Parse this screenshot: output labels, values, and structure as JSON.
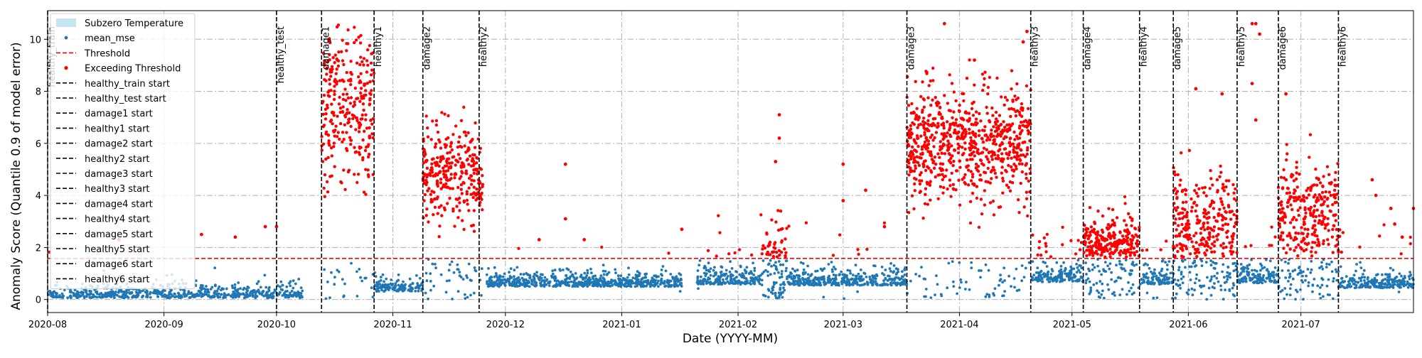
{
  "chart_data": {
    "type": "scatter",
    "title": "",
    "xlabel": "Date (YYYY-MM)",
    "ylabel": "Anomaly Score (Quantile 0.9 of model error)",
    "xlim": [
      "2020-08-01",
      "2021-07-31"
    ],
    "ylim": [
      -0.5,
      11.1
    ],
    "x_ticks": [
      "2020-08",
      "2020-09",
      "2020-10",
      "2020-11",
      "2020-12",
      "2021-01",
      "2021-02",
      "2021-03",
      "2021-04",
      "2021-05",
      "2021-06",
      "2021-07"
    ],
    "y_ticks": [
      0,
      2,
      4,
      6,
      8,
      10
    ],
    "grid": true,
    "legend_position": "top-left",
    "threshold": 1.58,
    "colors": {
      "normal": "#1f77b4",
      "exceed": "#ff0000",
      "threshold": "#ff0000",
      "event_line": "#000000",
      "subzero": "#add8e6",
      "grid": "#b0b0b0"
    },
    "legend": [
      {
        "label": "Subzero Temperature",
        "kind": "patch"
      },
      {
        "label": "mean_mse",
        "kind": "dot_blue"
      },
      {
        "label": "Threshold",
        "kind": "dash_red"
      },
      {
        "label": "Exceeding Threshold",
        "kind": "dot_red"
      },
      {
        "label": "healthy_train start",
        "kind": "dash_black"
      },
      {
        "label": "healthy_test start",
        "kind": "dash_black"
      },
      {
        "label": "damage1 start",
        "kind": "dash_black"
      },
      {
        "label": "healthy1 start",
        "kind": "dash_black"
      },
      {
        "label": "damage2 start",
        "kind": "dash_black"
      },
      {
        "label": "healthy2 start",
        "kind": "dash_black"
      },
      {
        "label": "damage3 start",
        "kind": "dash_black"
      },
      {
        "label": "healthy3 start",
        "kind": "dash_black"
      },
      {
        "label": "damage4 start",
        "kind": "dash_black"
      },
      {
        "label": "healthy4 start",
        "kind": "dash_black"
      },
      {
        "label": "damage5 start",
        "kind": "dash_black"
      },
      {
        "label": "healthy5 start",
        "kind": "dash_black"
      },
      {
        "label": "damage6 start",
        "kind": "dash_black"
      },
      {
        "label": "healthy6 start",
        "kind": "dash_black"
      }
    ],
    "events": [
      {
        "label": "healthy_train",
        "date": "2020-08-01"
      },
      {
        "label": "healthy_test",
        "date": "2020-10-01"
      },
      {
        "label": "damage1",
        "date": "2020-10-13"
      },
      {
        "label": "healthy1",
        "date": "2020-10-27"
      },
      {
        "label": "damage2",
        "date": "2020-11-09"
      },
      {
        "label": "healthy2",
        "date": "2020-11-24"
      },
      {
        "label": "damage3",
        "date": "2021-03-18"
      },
      {
        "label": "healthy3",
        "date": "2021-04-20"
      },
      {
        "label": "damage4",
        "date": "2021-05-04"
      },
      {
        "label": "healthy4",
        "date": "2021-05-19"
      },
      {
        "label": "damage5",
        "date": "2021-05-28"
      },
      {
        "label": "healthy5",
        "date": "2021-06-14"
      },
      {
        "label": "damage6",
        "date": "2021-06-25"
      },
      {
        "label": "healthy6",
        "date": "2021-07-11"
      }
    ],
    "segments": [
      {
        "start": "2020-08-01",
        "end": "2020-10-08",
        "level": 0.15,
        "spread": 0.3,
        "max_normal": 1.3,
        "exceed_rate": 0.004,
        "exceed_level": 2.0,
        "exceed_spread": 0.5,
        "density": 9
      },
      {
        "start": "2020-10-13",
        "end": "2020-10-27",
        "level": 7.6,
        "spread": 1.4,
        "max_normal": 1.55,
        "exceed_rate": 0.9,
        "exceed_level": 7.4,
        "exceed_spread": 1.6,
        "density": 22
      },
      {
        "start": "2020-10-27",
        "end": "2020-11-09",
        "level": 0.4,
        "spread": 0.3,
        "max_normal": 1.2,
        "exceed_rate": 0.01,
        "exceed_level": 2.0,
        "exceed_spread": 0.6,
        "density": 10
      },
      {
        "start": "2020-11-09",
        "end": "2020-11-25",
        "level": 4.7,
        "spread": 0.8,
        "max_normal": 1.55,
        "exceed_rate": 0.85,
        "exceed_level": 4.8,
        "exceed_spread": 0.9,
        "density": 22
      },
      {
        "start": "2020-11-26",
        "end": "2021-01-17",
        "level": 0.6,
        "spread": 0.35,
        "max_normal": 1.4,
        "exceed_rate": 0.006,
        "exceed_level": 1.9,
        "exceed_spread": 0.4,
        "density": 12
      },
      {
        "start": "2021-01-21",
        "end": "2021-02-07",
        "level": 0.7,
        "spread": 0.4,
        "max_normal": 1.55,
        "exceed_rate": 0.05,
        "exceed_level": 2.0,
        "exceed_spread": 0.6,
        "density": 12
      },
      {
        "start": "2021-02-07",
        "end": "2021-02-14",
        "level": 1.8,
        "spread": 0.6,
        "max_normal": 1.55,
        "exceed_rate": 0.45,
        "exceed_level": 2.1,
        "exceed_spread": 0.6,
        "density": 16
      },
      {
        "start": "2021-02-14",
        "end": "2021-03-18",
        "level": 0.65,
        "spread": 0.35,
        "max_normal": 1.45,
        "exceed_rate": 0.012,
        "exceed_level": 2.1,
        "exceed_spread": 0.8,
        "density": 12
      },
      {
        "start": "2021-03-18",
        "end": "2021-04-20",
        "level": 6.0,
        "spread": 0.9,
        "max_normal": 1.55,
        "exceed_rate": 0.92,
        "exceed_level": 6.0,
        "exceed_spread": 1.1,
        "density": 24
      },
      {
        "start": "2021-04-20",
        "end": "2021-05-04",
        "level": 0.8,
        "spread": 0.4,
        "max_normal": 1.55,
        "exceed_rate": 0.08,
        "exceed_level": 2.0,
        "exceed_spread": 0.5,
        "density": 12
      },
      {
        "start": "2021-05-04",
        "end": "2021-05-19",
        "level": 2.2,
        "spread": 0.5,
        "max_normal": 1.55,
        "exceed_rate": 0.7,
        "exceed_level": 2.3,
        "exceed_spread": 0.5,
        "density": 20
      },
      {
        "start": "2021-05-19",
        "end": "2021-05-28",
        "level": 0.7,
        "spread": 0.4,
        "max_normal": 1.5,
        "exceed_rate": 0.06,
        "exceed_level": 2.0,
        "exceed_spread": 0.5,
        "density": 12
      },
      {
        "start": "2021-05-28",
        "end": "2021-06-14",
        "level": 2.8,
        "spread": 0.9,
        "max_normal": 1.55,
        "exceed_rate": 0.75,
        "exceed_level": 2.9,
        "exceed_spread": 1.0,
        "density": 22
      },
      {
        "start": "2021-06-14",
        "end": "2021-06-25",
        "level": 0.75,
        "spread": 0.4,
        "max_normal": 1.55,
        "exceed_rate": 0.06,
        "exceed_level": 2.2,
        "exceed_spread": 0.6,
        "density": 12
      },
      {
        "start": "2021-06-25",
        "end": "2021-07-11",
        "level": 3.2,
        "spread": 1.0,
        "max_normal": 1.55,
        "exceed_rate": 0.8,
        "exceed_level": 3.3,
        "exceed_spread": 1.1,
        "density": 22
      },
      {
        "start": "2021-07-11",
        "end": "2021-07-31",
        "level": 0.55,
        "spread": 0.35,
        "max_normal": 1.5,
        "exceed_rate": 0.04,
        "exceed_level": 2.1,
        "exceed_spread": 0.5,
        "density": 12
      }
    ],
    "outliers": [
      {
        "date": "2021-03-28",
        "y": 10.6
      },
      {
        "date": "2021-04-19",
        "y": 10.3
      },
      {
        "date": "2021-04-18",
        "y": 9.9
      },
      {
        "date": "2021-04-05",
        "y": 9.2
      },
      {
        "date": "2021-06-18",
        "y": 10.6
      },
      {
        "date": "2021-06-19",
        "y": 10.6
      },
      {
        "date": "2021-06-20",
        "y": 10.2
      },
      {
        "date": "2021-06-18",
        "y": 8.3
      },
      {
        "date": "2021-06-19",
        "y": 6.9
      },
      {
        "date": "2021-06-10",
        "y": 7.9
      },
      {
        "date": "2021-06-03",
        "y": 8.1
      },
      {
        "date": "2021-06-27",
        "y": 7.9
      },
      {
        "date": "2021-02-12",
        "y": 7.1
      },
      {
        "date": "2021-02-12",
        "y": 6.2
      },
      {
        "date": "2021-02-11",
        "y": 5.3
      },
      {
        "date": "2020-12-17",
        "y": 5.2
      },
      {
        "date": "2020-12-17",
        "y": 3.1
      },
      {
        "date": "2021-03-01",
        "y": 5.2
      },
      {
        "date": "2021-03-01",
        "y": 3.8
      },
      {
        "date": "2021-03-07",
        "y": 4.2
      },
      {
        "date": "2021-07-20",
        "y": 4.6
      },
      {
        "date": "2021-07-21",
        "y": 4.0
      },
      {
        "date": "2021-07-25",
        "y": 3.5
      },
      {
        "date": "2021-07-31",
        "y": 3.5
      },
      {
        "date": "2021-07-26",
        "y": 2.9
      },
      {
        "date": "2021-07-28",
        "y": 2.4
      },
      {
        "date": "2021-03-12",
        "y": 2.8
      },
      {
        "date": "2020-09-11",
        "y": 2.5
      },
      {
        "date": "2020-09-20",
        "y": 2.4
      },
      {
        "date": "2020-09-28",
        "y": 2.8
      },
      {
        "date": "2020-08-20",
        "y": 2.3
      },
      {
        "date": "2020-08-28",
        "y": 3.0
      },
      {
        "date": "2020-12-10",
        "y": 2.3
      },
      {
        "date": "2020-12-22",
        "y": 2.3
      },
      {
        "date": "2021-01-17",
        "y": 2.7
      },
      {
        "date": "2020-10-01",
        "y": 2.8
      }
    ]
  }
}
